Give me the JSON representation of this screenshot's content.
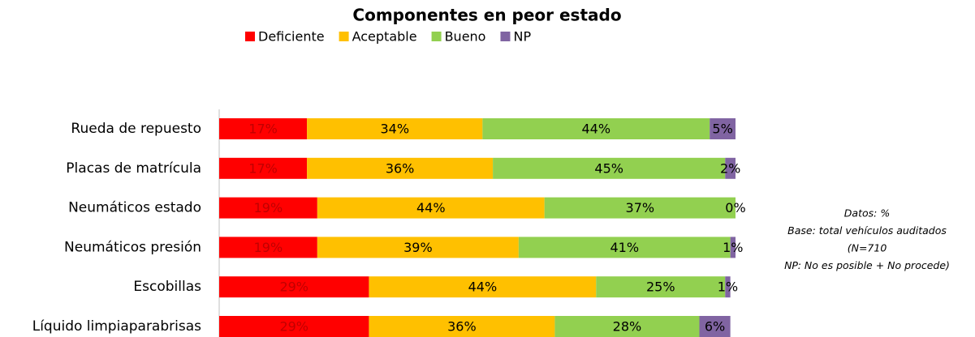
{
  "chart_data": {
    "type": "stacked_bar_horizontal",
    "title": "Componentes en peor estado",
    "categories": [
      "Rueda de repuesto",
      "Placas de matrícula",
      "Neumáticos estado",
      "Neumáticos presión",
      "Escobillas",
      "Líquido limpiaparabrisas"
    ],
    "series": [
      {
        "name": "Deficiente",
        "color": "#FF0000",
        "values": [
          17,
          17,
          19,
          19,
          29,
          29
        ],
        "value_labels": [
          "17%",
          "17%",
          "19%",
          "19%",
          "29%",
          "29%"
        ]
      },
      {
        "name": "Aceptable",
        "color": "#FFC000",
        "values": [
          34,
          36,
          44,
          39,
          44,
          36
        ],
        "value_labels": [
          "34%",
          "36%",
          "44%",
          "39%",
          "44%",
          "36%"
        ]
      },
      {
        "name": "Bueno",
        "color": "#92D050",
        "values": [
          44,
          45,
          37,
          41,
          25,
          28
        ],
        "value_labels": [
          "44%",
          "45%",
          "37%",
          "41%",
          "25%",
          "28%"
        ]
      },
      {
        "name": "NP",
        "color": "#8064A2",
        "values": [
          5,
          2,
          0,
          1,
          1,
          6
        ],
        "value_labels": [
          "5%",
          "2%",
          "0%",
          "1%",
          "1%",
          "6%"
        ]
      }
    ],
    "legend": "top",
    "annotations": [
      "Datos: %",
      "Base: total vehículos auditados",
      "(N=710",
      "NP: No es posible + No procede)"
    ]
  }
}
